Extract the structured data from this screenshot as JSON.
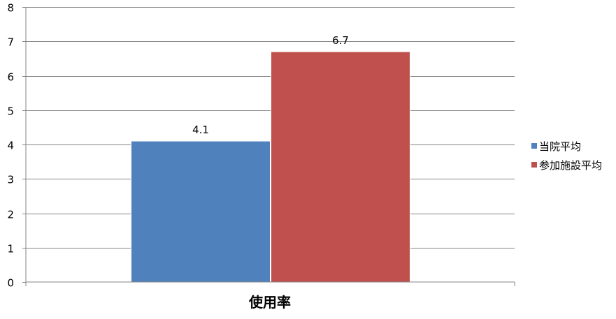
{
  "chart_data": {
    "type": "bar",
    "categories": [
      "使用率"
    ],
    "series": [
      {
        "name": "当院平均",
        "values": [
          4.1
        ],
        "color": "#4F81BD"
      },
      {
        "name": "参加施設平均",
        "values": [
          6.7
        ],
        "color": "#C0504D"
      }
    ],
    "data_labels": [
      "4.1",
      "6.7"
    ],
    "yticks": [
      "0",
      "1",
      "2",
      "3",
      "4",
      "5",
      "6",
      "7",
      "8"
    ],
    "ylim": [
      0,
      8
    ],
    "ystep": 1,
    "grid": true,
    "legend_position": "right",
    "title": "",
    "xlabel": "",
    "ylabel": ""
  }
}
